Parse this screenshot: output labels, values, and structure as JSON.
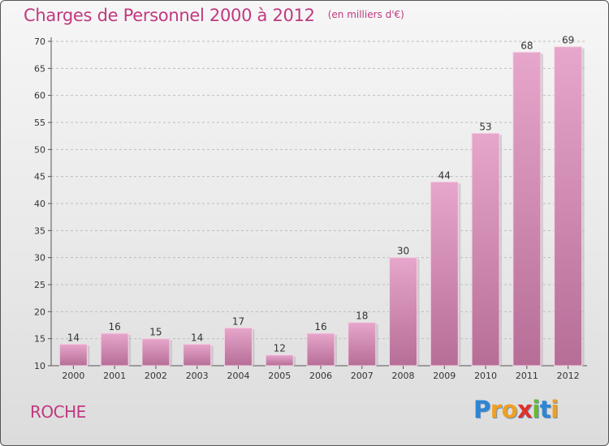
{
  "title": {
    "main": "Charges de Personnel 2000 à 2012",
    "sub": "(en milliers d'€)"
  },
  "footer": {
    "commune": "ROCHE"
  },
  "logo": {
    "letters": [
      {
        "ch": "P",
        "color": "#2e86d1"
      },
      {
        "ch": "r",
        "color": "#f0a020"
      },
      {
        "ch": "o",
        "color": "#f0a020"
      },
      {
        "ch": "x",
        "color": "#e0302a"
      },
      {
        "ch": "i",
        "color": "#6ab82e"
      },
      {
        "ch": "t",
        "color": "#2e86d1"
      },
      {
        "ch": "i",
        "color": "#f0a020"
      }
    ]
  },
  "colors": {
    "bar_top": "#e7a6cb",
    "bar_bottom": "#b66e97",
    "text": "#c0397f"
  },
  "chart_data": {
    "type": "bar",
    "title": "Charges de Personnel 2000 à 2012",
    "subtitle": "(en milliers d'€)",
    "categories": [
      "2000",
      "2001",
      "2002",
      "2003",
      "2004",
      "2005",
      "2006",
      "2007",
      "2008",
      "2009",
      "2010",
      "2011",
      "2012"
    ],
    "values": [
      14,
      16,
      15,
      14,
      17,
      12,
      16,
      18,
      30,
      44,
      53,
      68,
      69
    ],
    "data_labels": [
      "14",
      "16",
      "15",
      "14",
      "17",
      "12",
      "16",
      "18",
      "30",
      "44",
      "53",
      "68",
      "69"
    ],
    "ylim": [
      10,
      70
    ],
    "yticks": [
      10,
      15,
      20,
      25,
      30,
      35,
      40,
      45,
      50,
      55,
      60,
      65,
      70
    ],
    "grid": true,
    "legend": "none"
  }
}
